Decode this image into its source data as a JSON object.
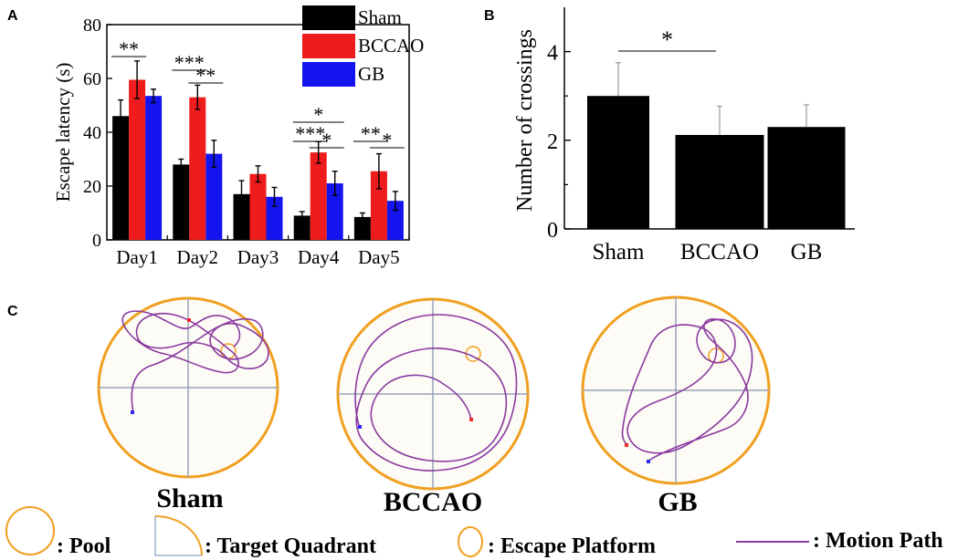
{
  "panel_labels": {
    "a": "A",
    "b": "B",
    "c": "C"
  },
  "colors": {
    "sham": "#000000",
    "bccao": "#ee1c1c",
    "gb": "#1414ee",
    "pool": "#f0a020",
    "path": "#8a3aa0",
    "axis_cross": "#9aa3b8"
  },
  "chart_data": [
    {
      "type": "bar",
      "panel": "A",
      "title": "",
      "xlabel": "",
      "ylabel": "Escape latency (s)",
      "categories": [
        "Day1",
        "Day2",
        "Day3",
        "Day4",
        "Day5"
      ],
      "ylim": [
        0,
        80
      ],
      "yticks": [
        "0",
        "20",
        "40",
        "60",
        "80"
      ],
      "legend": "top-right",
      "series": [
        {
          "name": "Sham",
          "values": [
            46,
            28,
            17,
            9,
            8.5
          ],
          "errors": [
            6,
            2,
            5,
            1.5,
            1.5
          ]
        },
        {
          "name": "BCCAO",
          "values": [
            59.5,
            53,
            24.5,
            32.5,
            25.5
          ],
          "errors": [
            7,
            4.5,
            3,
            4,
            6.5
          ]
        },
        {
          "name": "GB",
          "values": [
            53.5,
            32,
            16,
            21,
            14.5
          ],
          "errors": [
            2.5,
            5,
            3.5,
            4.5,
            3.5
          ]
        }
      ],
      "annotations": [
        {
          "text": "**",
          "day": 0,
          "from": 0,
          "to": 1
        },
        {
          "text": "***",
          "day": 1,
          "from": 0,
          "to": 1
        },
        {
          "text": "**",
          "day": 1,
          "from": 1,
          "to": 2
        },
        {
          "text": "*",
          "day": 3,
          "from": 0,
          "to": 2
        },
        {
          "text": "***",
          "day": 3,
          "from": 0,
          "to": 1
        },
        {
          "text": "*",
          "day": 3,
          "from": 1,
          "to": 2
        },
        {
          "text": "**",
          "day": 4,
          "from": 0,
          "to": 1
        },
        {
          "text": "*",
          "day": 4,
          "from": 1,
          "to": 2
        }
      ]
    },
    {
      "type": "bar",
      "panel": "B",
      "title": "",
      "xlabel": "",
      "ylabel": "Number of crossings",
      "categories": [
        "Sham",
        "BCCAO",
        "GB"
      ],
      "values": [
        3.0,
        2.12,
        2.3
      ],
      "errors": [
        0.75,
        0.65,
        0.5
      ],
      "ylim": [
        0,
        5
      ],
      "yticks": [
        "0",
        "2",
        "4"
      ],
      "annotations": [
        {
          "text": "*",
          "from": 0,
          "to": 1
        }
      ]
    }
  ],
  "panel_c": {
    "labels": [
      "Sham",
      "BCCAO",
      "GB"
    ]
  },
  "legend_c": {
    "pool": ": Pool",
    "target_quadrant": ": Target Quadrant",
    "escape_platform": ": Escape Platform",
    "motion_path": ": Motion Path"
  }
}
